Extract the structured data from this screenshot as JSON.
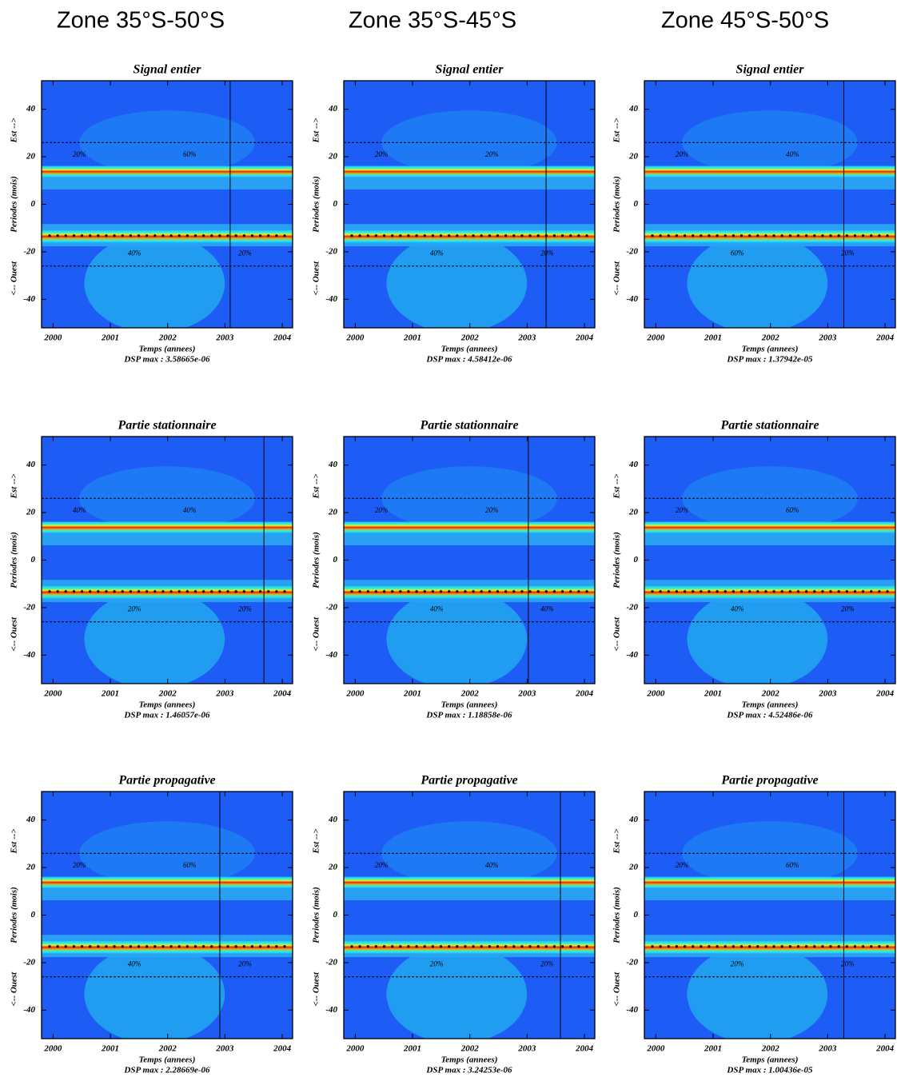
{
  "headers": [
    "Zone 35°S-50°S",
    "Zone 35°S-45°S",
    "Zone 45°S-50°S"
  ],
  "chart_data": [
    {
      "type": "heatmap",
      "title": "Signal entier",
      "x_label": "Temps (annees)",
      "y_label": [
        "<-- Ouest",
        "Periodes (mois)",
        "Est -->"
      ],
      "note": "DSP max :  3.58665e-06",
      "xlim": [
        1999.8,
        2004.18
      ],
      "ylim": [
        -52,
        52
      ],
      "xticks": [
        2000,
        2001,
        2002,
        2003,
        2004
      ],
      "yticks": [
        -40,
        -20,
        0,
        20,
        40
      ],
      "vline": 2003.09,
      "hlines": [
        26,
        -26
      ],
      "contour_labels": [
        "20%",
        "40%",
        "60%",
        "20%"
      ]
    },
    {
      "type": "heatmap",
      "title": "Signal entier",
      "x_label": "Temps (annees)",
      "y_label": [
        "<-- Ouest",
        "Periodes (mois)",
        "Est -->"
      ],
      "note": "DSP max :  4.58412e-06",
      "xlim": [
        1999.8,
        2004.18
      ],
      "ylim": [
        -52,
        52
      ],
      "xticks": [
        2000,
        2001,
        2002,
        2003,
        2004
      ],
      "yticks": [
        -40,
        -20,
        0,
        20,
        40
      ],
      "vline": 2003.33,
      "hlines": [
        26,
        -26
      ],
      "contour_labels": [
        "20%",
        "40%",
        "20%",
        "20%"
      ]
    },
    {
      "type": "heatmap",
      "title": "Signal entier",
      "x_label": "Temps (annees)",
      "y_label": [
        "<-- Ouest",
        "Periodes (mois)",
        "Est -->"
      ],
      "note": "DSP max :  1.37942e-05",
      "xlim": [
        1999.8,
        2004.18
      ],
      "ylim": [
        -52,
        52
      ],
      "xticks": [
        2000,
        2001,
        2002,
        2003,
        2004
      ],
      "yticks": [
        -40,
        -20,
        0,
        20,
        40
      ],
      "vline": 2003.28,
      "hlines": [
        26,
        -26
      ],
      "contour_labels": [
        "20%",
        "60%",
        "40%",
        "20%"
      ]
    },
    {
      "type": "heatmap",
      "title": "Partie stationnaire",
      "x_label": "Temps (annees)",
      "y_label": [
        "<-- Ouest",
        "Periodes (mois)",
        "Est -->"
      ],
      "note": "DSP max :  1.46057e-06",
      "xlim": [
        1999.8,
        2004.18
      ],
      "ylim": [
        -52,
        52
      ],
      "xticks": [
        2000,
        2001,
        2002,
        2003,
        2004
      ],
      "yticks": [
        -40,
        -20,
        0,
        20,
        40
      ],
      "vline": 2003.68,
      "hlines": [
        26,
        -26
      ],
      "contour_labels": [
        "40%",
        "20%",
        "40%",
        "20%"
      ]
    },
    {
      "type": "heatmap",
      "title": "Partie stationnaire",
      "x_label": "Temps (annees)",
      "y_label": [
        "<-- Ouest",
        "Periodes (mois)",
        "Est -->"
      ],
      "note": "DSP max :  1.18858e-06",
      "xlim": [
        1999.8,
        2004.18
      ],
      "ylim": [
        -52,
        52
      ],
      "xticks": [
        2000,
        2001,
        2002,
        2003,
        2004
      ],
      "yticks": [
        -40,
        -20,
        0,
        20,
        40
      ],
      "vline": 2003.02,
      "hlines": [
        26,
        -26
      ],
      "contour_labels": [
        "20%",
        "40%",
        "20%",
        "40%"
      ]
    },
    {
      "type": "heatmap",
      "title": "Partie stationnaire",
      "x_label": "Temps (annees)",
      "y_label": [
        "<-- Ouest",
        "Periodes (mois)",
        "Est -->"
      ],
      "note": "DSP max :  4.52486e-06",
      "xlim": [
        1999.8,
        2004.18
      ],
      "ylim": [
        -52,
        52
      ],
      "xticks": [
        2000,
        2001,
        2002,
        2003,
        2004
      ],
      "yticks": [
        -40,
        -20,
        0,
        20,
        40
      ],
      "hlines": [
        26,
        -26
      ],
      "contour_labels": [
        "20%",
        "40%",
        "60%",
        "20%"
      ]
    },
    {
      "type": "heatmap",
      "title": "Partie propagative",
      "x_label": "Temps (annees)",
      "y_label": [
        "<-- Ouest",
        "Periodes (mois)",
        "Est -->"
      ],
      "note": "DSP max :  2.28669e-06",
      "xlim": [
        1999.8,
        2004.18
      ],
      "ylim": [
        -52,
        52
      ],
      "xticks": [
        2000,
        2001,
        2002,
        2003,
        2004
      ],
      "yticks": [
        -40,
        -20,
        0,
        20,
        40
      ],
      "vline": 2002.91,
      "hlines": [
        26,
        -26
      ],
      "contour_labels": [
        "20%",
        "40%",
        "60%",
        "20%"
      ]
    },
    {
      "type": "heatmap",
      "title": "Partie propagative",
      "x_label": "Temps (annees)",
      "y_label": [
        "<-- Ouest",
        "Periodes (mois)",
        "Est -->"
      ],
      "note": "DSP max :  3.24253e-06",
      "xlim": [
        1999.8,
        2004.18
      ],
      "ylim": [
        -52,
        52
      ],
      "xticks": [
        2000,
        2001,
        2002,
        2003,
        2004
      ],
      "yticks": [
        -40,
        -20,
        0,
        20,
        40
      ],
      "vline": 2003.58,
      "hlines": [
        26,
        -26
      ],
      "contour_labels": [
        "20%",
        "20%",
        "40%",
        "20%"
      ]
    },
    {
      "type": "heatmap",
      "title": "Partie propagative",
      "x_label": "Temps (annees)",
      "y_label": [
        "<-- Ouest",
        "Periodes (mois)",
        "Est -->"
      ],
      "note": "DSP max :  1.00436e-05",
      "xlim": [
        1999.8,
        2004.18
      ],
      "ylim": [
        -52,
        52
      ],
      "xticks": [
        2000,
        2001,
        2002,
        2003,
        2004
      ],
      "yticks": [
        -40,
        -20,
        0,
        20,
        40
      ],
      "vline": 2003.28,
      "hlines": [
        26,
        -26
      ],
      "contour_labels": [
        "20%",
        "20%",
        "60%",
        "20%"
      ]
    }
  ]
}
